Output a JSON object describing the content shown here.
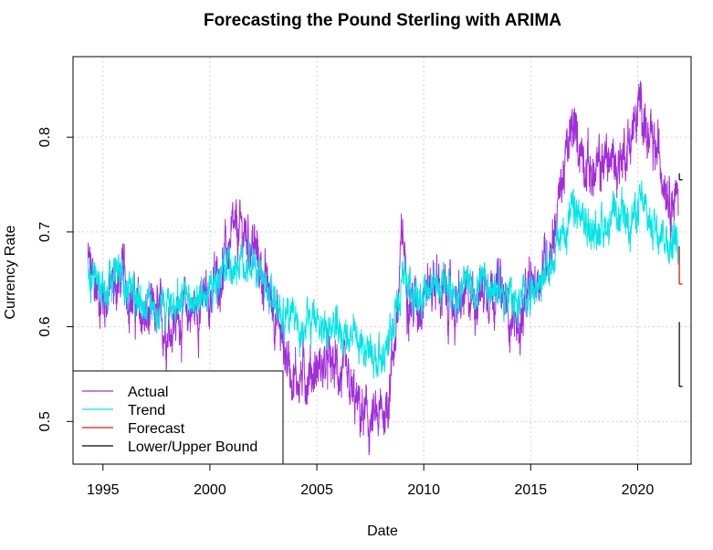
{
  "chart_data": {
    "type": "line",
    "title": "Forecasting the Pound Sterling with ARIMA",
    "xlabel": "Date",
    "ylabel": "Currency Rate",
    "xlim": [
      1993.6,
      2022.5
    ],
    "ylim": [
      0.455,
      0.885
    ],
    "x_ticks": [
      1995,
      2000,
      2005,
      2010,
      2015,
      2020
    ],
    "x_tick_labels": [
      "1995",
      "2000",
      "2005",
      "2010",
      "2015",
      "2020"
    ],
    "y_ticks": [
      0.5,
      0.6,
      0.7,
      0.8
    ],
    "y_tick_labels": [
      "0.5",
      "0.6",
      "0.7",
      "0.8"
    ],
    "grid": true,
    "legend_position": "bottom-left",
    "legend": [
      {
        "label": "Actual",
        "color": "#A12DDB"
      },
      {
        "label": "Trend",
        "color": "#00E5E5"
      },
      {
        "label": "Forecast",
        "color": "#E8171B"
      },
      {
        "label": "Lower/Upper Bound",
        "color": "#000000"
      }
    ],
    "series": [
      {
        "name": "Actual",
        "color": "#A12DDB",
        "x": [
          1994.3,
          1994.6,
          1995.0,
          1995.5,
          1996.0,
          1996.5,
          1997.0,
          1997.5,
          1998.0,
          1998.5,
          1999.0,
          1999.5,
          2000.0,
          2000.5,
          2001.0,
          2001.5,
          2002.0,
          2002.5,
          2003.0,
          2003.5,
          2004.0,
          2004.5,
          2005.0,
          2005.5,
          2006.0,
          2006.5,
          2007.0,
          2007.5,
          2007.9,
          2008.3,
          2008.8,
          2009.0,
          2009.3,
          2009.7,
          2010.0,
          2010.5,
          2011.0,
          2011.5,
          2012.0,
          2012.5,
          2013.0,
          2013.5,
          2014.0,
          2014.5,
          2015.0,
          2015.5,
          2016.0,
          2016.5,
          2017.0,
          2017.5,
          2018.0,
          2018.5,
          2019.0,
          2019.5,
          2020.0,
          2020.2,
          2020.5,
          2021.0,
          2021.5,
          2021.9
        ],
        "values": [
          0.67,
          0.64,
          0.63,
          0.64,
          0.655,
          0.62,
          0.605,
          0.61,
          0.6,
          0.61,
          0.615,
          0.62,
          0.63,
          0.66,
          0.69,
          0.7,
          0.69,
          0.65,
          0.62,
          0.575,
          0.545,
          0.55,
          0.555,
          0.56,
          0.555,
          0.53,
          0.51,
          0.495,
          0.5,
          0.52,
          0.62,
          0.7,
          0.63,
          0.62,
          0.64,
          0.65,
          0.63,
          0.62,
          0.63,
          0.635,
          0.645,
          0.64,
          0.615,
          0.6,
          0.64,
          0.66,
          0.69,
          0.76,
          0.81,
          0.78,
          0.755,
          0.78,
          0.77,
          0.79,
          0.82,
          0.84,
          0.79,
          0.78,
          0.745,
          0.73
        ]
      },
      {
        "name": "Trend",
        "color": "#00E5E5",
        "x": [
          1994.3,
          1994.6,
          1995.0,
          1995.5,
          1996.0,
          1996.5,
          1997.0,
          1997.5,
          1998.0,
          1998.5,
          1999.0,
          1999.5,
          2000.0,
          2000.5,
          2001.0,
          2001.5,
          2002.0,
          2002.5,
          2003.0,
          2003.5,
          2004.0,
          2004.5,
          2005.0,
          2005.5,
          2006.0,
          2006.5,
          2007.0,
          2007.5,
          2007.9,
          2008.3,
          2008.8,
          2009.0,
          2009.3,
          2009.7,
          2010.0,
          2010.5,
          2011.0,
          2011.5,
          2012.0,
          2012.5,
          2013.0,
          2013.5,
          2014.0,
          2014.5,
          2015.0,
          2015.5,
          2016.0,
          2016.5,
          2017.0,
          2017.5,
          2018.0,
          2018.5,
          2019.0,
          2019.5,
          2020.0,
          2020.2,
          2020.5,
          2021.0,
          2021.5,
          2021.9
        ],
        "values": [
          0.66,
          0.645,
          0.64,
          0.645,
          0.65,
          0.635,
          0.625,
          0.625,
          0.62,
          0.625,
          0.625,
          0.63,
          0.635,
          0.65,
          0.665,
          0.67,
          0.665,
          0.645,
          0.63,
          0.61,
          0.6,
          0.6,
          0.605,
          0.6,
          0.595,
          0.59,
          0.58,
          0.575,
          0.57,
          0.575,
          0.62,
          0.67,
          0.64,
          0.635,
          0.64,
          0.645,
          0.64,
          0.635,
          0.64,
          0.64,
          0.645,
          0.64,
          0.63,
          0.625,
          0.64,
          0.65,
          0.67,
          0.7,
          0.72,
          0.71,
          0.7,
          0.71,
          0.71,
          0.715,
          0.72,
          0.73,
          0.71,
          0.71,
          0.69,
          0.685
        ]
      },
      {
        "name": "Forecast",
        "color": "#E8171B",
        "x": [
          2021.95,
          2022.1
        ],
        "values": [
          0.645,
          0.645
        ]
      },
      {
        "name": "Lower Bound",
        "color": "#000000",
        "x": [
          2021.95,
          2022.1
        ],
        "values": [
          0.537,
          0.537
        ]
      },
      {
        "name": "Upper Bound",
        "color": "#000000",
        "x": [
          2021.95,
          2022.1
        ],
        "values": [
          0.755,
          0.755
        ]
      }
    ]
  }
}
